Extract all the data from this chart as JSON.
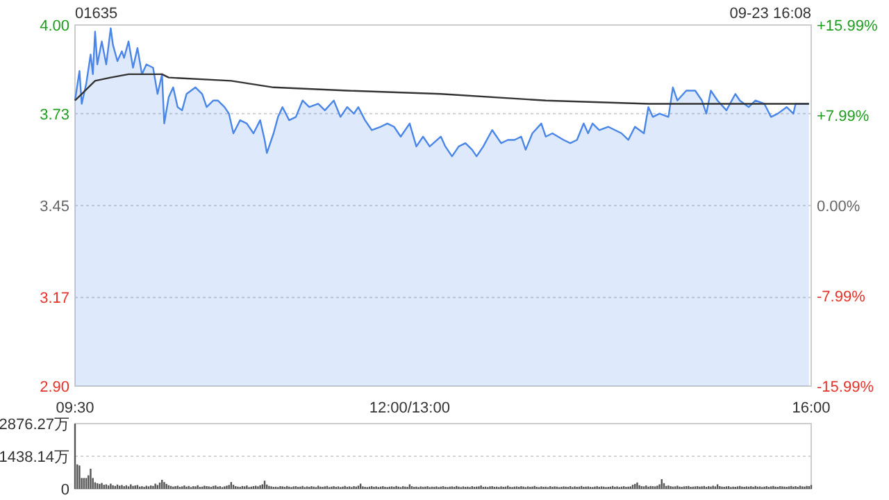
{
  "chart_data": [
    {
      "type": "area",
      "title": "01635",
      "annotations": [
        "09-23 16:08"
      ],
      "grid": "y",
      "categories": [
        "09:30",
        null,
        null,
        null,
        null,
        null,
        null,
        null,
        null,
        null,
        null,
        null,
        null,
        null,
        null,
        null,
        null,
        null,
        null,
        null,
        null,
        null,
        null,
        null,
        null,
        null,
        null,
        null,
        null,
        null,
        null,
        null,
        null,
        null,
        null,
        null,
        null,
        null,
        null,
        null,
        null,
        null,
        null,
        null,
        null,
        null,
        null,
        null,
        null,
        null,
        null,
        null,
        null,
        null,
        null,
        null,
        null,
        null,
        null,
        null,
        null,
        null,
        null,
        null,
        null,
        null,
        null,
        null,
        null,
        null,
        null,
        null,
        null,
        null,
        null,
        null,
        null,
        null,
        null,
        null,
        null,
        null,
        null,
        null,
        null,
        null,
        null,
        null,
        null,
        null,
        null,
        null,
        null,
        null,
        null,
        null,
        null,
        null,
        null,
        null,
        null,
        null,
        null,
        null,
        null,
        null,
        null,
        null,
        null,
        null,
        null,
        null,
        null,
        null,
        null,
        null,
        null,
        null,
        null,
        null,
        null,
        null,
        null,
        null,
        null,
        null,
        null,
        null,
        null,
        null,
        null,
        null,
        null,
        null,
        null,
        null,
        null,
        null,
        null,
        null,
        null,
        null,
        null,
        null,
        null,
        null,
        null,
        null,
        null,
        null,
        "12:00/13:00",
        null,
        null,
        null,
        null,
        null,
        null,
        null,
        null,
        null,
        null,
        null,
        null,
        null,
        null,
        null,
        null,
        null,
        null,
        null,
        null,
        null,
        null,
        null,
        null,
        null,
        null,
        null,
        null,
        null,
        null,
        null,
        null,
        null,
        null,
        null,
        null,
        null,
        null,
        null,
        null,
        null,
        null,
        null,
        null,
        null,
        null,
        null,
        null,
        null,
        null,
        null,
        null,
        null,
        null,
        null,
        null,
        null,
        null,
        null,
        null,
        null,
        null,
        null,
        null,
        null,
        null,
        null,
        null,
        null,
        null,
        null,
        null,
        null,
        null,
        null,
        null,
        null,
        null,
        null,
        null,
        null,
        null,
        null,
        null,
        null,
        null,
        null,
        null,
        null,
        null,
        null,
        null,
        null,
        null,
        null,
        null,
        null,
        null,
        null,
        null,
        null,
        null,
        null,
        null,
        null,
        null,
        null,
        null,
        null,
        null,
        null,
        null,
        null,
        null,
        null,
        null,
        null,
        null,
        null,
        null,
        null,
        null,
        null,
        null,
        null,
        null,
        null,
        null,
        null,
        null,
        null,
        null,
        null,
        null,
        null,
        null,
        null,
        null,
        null,
        null,
        null,
        null,
        null,
        null,
        null,
        null,
        null,
        null,
        null,
        null,
        null,
        null,
        null,
        null,
        null,
        null,
        null,
        null,
        null,
        null,
        null,
        null,
        null,
        null,
        null,
        null,
        null,
        null,
        null,
        null,
        null,
        null,
        null,
        null,
        null,
        null,
        null,
        null,
        null,
        "16:00"
      ],
      "ylim": [
        2.9,
        4.0
      ],
      "yticks": [
        {
          "value": 2.9,
          "label": "2.90"
        },
        {
          "value": 3.17,
          "label": "3.17"
        },
        {
          "value": 3.45,
          "label": "3.45"
        },
        {
          "value": 3.73,
          "label": "3.73"
        },
        {
          "value": 4.0,
          "label": "4.00"
        }
      ],
      "y2lim": [
        -15.99,
        15.99
      ],
      "y2ticks": [
        {
          "value": -15.99,
          "label": "-15.99%"
        },
        {
          "value": -7.99,
          "label": "-7.99%"
        },
        {
          "value": 0,
          "label": "0.00%"
        },
        {
          "value": 7.99,
          "label": "+7.99%"
        },
        {
          "value": 15.99,
          "label": "+15.99%"
        }
      ],
      "series": [
        {
          "color": "#4a86e8",
          "values": [
            3.77,
            null,
            3.86,
            3.76,
            null,
            3.82,
            null,
            3.91,
            3.85,
            3.98,
            3.88,
            null,
            3.95,
            null,
            3.88,
            null,
            3.99,
            3.94,
            null,
            3.89,
            null,
            3.92,
            3.9,
            null,
            3.95,
            null,
            3.87,
            null,
            3.93,
            null,
            3.85,
            null,
            3.88,
            null,
            null,
            3.87,
            null,
            3.79,
            null,
            3.85,
            3.7,
            null,
            3.78,
            null,
            3.81,
            null,
            3.75,
            null,
            3.74,
            null,
            3.79,
            null,
            null,
            null,
            3.81,
            null,
            null,
            3.79,
            null,
            3.75,
            null,
            null,
            3.77,
            null,
            3.77,
            null,
            null,
            3.75,
            null,
            3.73,
            null,
            3.67,
            null,
            null,
            3.71,
            null,
            null,
            3.7,
            null,
            null,
            3.67,
            null,
            null,
            3.71,
            null,
            3.65,
            3.61,
            null,
            null,
            3.67,
            null,
            3.72,
            null,
            3.75,
            null,
            null,
            3.71,
            null,
            null,
            3.72,
            null,
            null,
            3.77,
            null,
            null,
            3.75,
            null,
            null,
            null,
            3.76,
            null,
            null,
            3.74,
            null,
            null,
            null,
            3.77,
            null,
            null,
            3.72,
            null,
            null,
            3.75,
            null,
            null,
            3.73,
            null,
            3.75,
            null,
            null,
            3.71,
            null,
            null,
            3.68,
            null,
            null,
            null,
            3.69,
            null,
            null,
            3.7,
            null,
            null,
            3.69,
            null,
            null,
            3.66,
            null,
            null,
            null,
            3.7,
            null,
            null,
            3.63,
            null,
            null,
            3.66,
            null,
            null,
            3.63,
            null,
            null,
            null,
            null,
            3.66,
            null,
            3.63,
            null,
            null,
            3.6,
            null,
            null,
            3.63,
            null,
            null,
            3.64,
            null,
            null,
            3.62,
            null,
            3.6,
            null,
            null,
            3.63,
            null,
            null,
            null,
            3.68,
            null,
            null,
            null,
            3.64,
            null,
            null,
            3.65,
            null,
            null,
            3.65,
            null,
            null,
            3.66,
            null,
            3.62,
            null,
            null,
            3.67,
            null,
            null,
            null,
            3.7,
            null,
            3.66,
            null,
            null,
            3.67,
            null,
            null,
            null,
            null,
            3.65,
            null,
            null,
            3.64,
            null,
            null,
            3.65,
            null,
            null,
            3.7,
            null,
            3.67,
            null,
            3.7,
            null,
            null,
            3.68,
            null,
            null,
            null,
            3.69,
            null,
            null,
            null,
            null,
            null,
            3.67,
            null,
            null,
            3.65,
            null,
            null,
            3.69,
            null,
            null,
            null,
            3.67,
            null,
            3.75,
            null,
            3.72,
            null,
            null,
            3.73,
            null,
            null,
            null,
            3.72,
            null,
            3.81,
            null,
            3.77,
            null,
            null,
            null,
            3.8,
            null,
            null,
            null,
            3.8,
            null,
            null,
            3.77,
            null,
            3.73,
            null,
            3.8,
            null,
            null,
            3.77,
            null,
            null,
            null,
            3.74,
            null,
            null,
            null,
            3.79,
            null,
            3.77,
            null,
            null,
            null,
            3.75,
            null,
            null,
            3.77,
            null,
            null,
            null,
            3.76,
            null,
            null,
            3.72,
            null,
            null,
            3.73,
            null,
            null,
            null,
            3.75,
            null,
            null,
            3.73,
            3.76,
            null,
            null,
            3.76,
            null,
            null,
            3.76,
            null
          ]
        },
        {
          "type": "line",
          "color": "#333333",
          "values": [
            3.77,
            null,
            null,
            3.79,
            null,
            null,
            null,
            null,
            null,
            3.83,
            null,
            null,
            null,
            null,
            null,
            null,
            3.84,
            null,
            null,
            null,
            null,
            null,
            null,
            null,
            3.85,
            null,
            null,
            null,
            null,
            null,
            null,
            null,
            null,
            null,
            null,
            null,
            null,
            null,
            null,
            3.85,
            null,
            null,
            3.84,
            null,
            null,
            null,
            null,
            null,
            null,
            null,
            null,
            null,
            null,
            null,
            null,
            null,
            null,
            null,
            null,
            null,
            null,
            null,
            null,
            null,
            null,
            null,
            null,
            null,
            null,
            null,
            3.83,
            null,
            null,
            null,
            null,
            null,
            null,
            null,
            null,
            null,
            null,
            null,
            null,
            null,
            null,
            null,
            null,
            null,
            null,
            3.81,
            null,
            null,
            null,
            null,
            null,
            null,
            null,
            null,
            null,
            null,
            null,
            null,
            null,
            null,
            null,
            null,
            null,
            null,
            null,
            null,
            null,
            null,
            null,
            null,
            null,
            null,
            null,
            null,
            null,
            null,
            null,
            null,
            3.8,
            null,
            null,
            null,
            null,
            null,
            null,
            null,
            null,
            null,
            null,
            null,
            null,
            null,
            null,
            null,
            null,
            null,
            null,
            null,
            null,
            null,
            null,
            null,
            null,
            null,
            null,
            null,
            null,
            null,
            null,
            null,
            null,
            null,
            null,
            null,
            null,
            null,
            null,
            null,
            null,
            null,
            3.79,
            null,
            null,
            null,
            null,
            null,
            null,
            null,
            null,
            null,
            null,
            null,
            null,
            null,
            null,
            null,
            null,
            null,
            null,
            null,
            null,
            null,
            null,
            null,
            null,
            null,
            null,
            null,
            null,
            null,
            null,
            null,
            null,
            null,
            null,
            null,
            null,
            null,
            null,
            null,
            null,
            null,
            null,
            null,
            null,
            null,
            null,
            3.77,
            null,
            null,
            null,
            null,
            null,
            null,
            null,
            null,
            null,
            null,
            null,
            null,
            null,
            null,
            null,
            null,
            null,
            null,
            null,
            null,
            null,
            null,
            null,
            null,
            null,
            null,
            null,
            null,
            null,
            null,
            null,
            null,
            null,
            null,
            null,
            null,
            null,
            null,
            null,
            null,
            null,
            null,
            null,
            null,
            null,
            3.76,
            null,
            null,
            null,
            null,
            null,
            null,
            null,
            null,
            null,
            null,
            null,
            null,
            null,
            null,
            null,
            null,
            null,
            null,
            null,
            null,
            null,
            null,
            null,
            null,
            null,
            null,
            null,
            null,
            null,
            null,
            null,
            null,
            null,
            null,
            null,
            null,
            null,
            null,
            null,
            null,
            null,
            null,
            null,
            null,
            null,
            null,
            null,
            null,
            null,
            null,
            null,
            null,
            null,
            null,
            null,
            null,
            null,
            null,
            null,
            null,
            null,
            null,
            null,
            null,
            null,
            null,
            null,
            null,
            null,
            null,
            null,
            3.76,
            null
          ]
        }
      ]
    },
    {
      "type": "bar",
      "color": "#555555",
      "grid": "y",
      "categories": [
        null,
        null,
        null,
        null,
        null,
        null,
        null,
        null,
        null,
        null,
        null,
        null,
        null,
        null,
        null,
        null,
        null,
        null,
        null,
        null,
        null,
        null,
        null,
        null,
        null,
        null,
        null,
        null,
        null,
        null,
        null,
        null,
        null,
        null,
        null,
        null,
        null,
        null,
        null,
        null,
        null,
        null,
        null,
        null,
        null,
        null,
        null,
        null,
        null,
        null,
        null,
        null,
        null,
        null,
        null,
        null,
        null,
        null,
        null,
        null,
        null,
        null,
        null,
        null,
        null,
        null,
        null,
        null,
        null,
        null,
        null,
        null,
        null,
        null,
        null,
        null,
        null,
        null,
        null,
        null,
        null,
        null,
        null,
        null,
        null,
        null,
        null,
        null,
        null,
        null,
        null,
        null,
        null,
        null,
        null,
        null,
        null,
        null,
        null,
        null,
        null,
        null,
        null,
        null,
        null,
        null,
        null,
        null,
        null,
        null,
        null,
        null,
        null,
        null,
        null,
        null,
        null,
        null,
        null,
        null,
        null,
        null,
        null,
        null,
        null,
        null,
        null,
        null,
        null,
        null,
        null,
        null,
        null,
        null,
        null,
        null,
        null,
        null,
        null,
        null,
        null,
        null,
        null,
        null,
        null,
        null,
        null,
        null,
        null,
        null,
        null,
        null,
        null,
        null,
        null,
        null,
        null,
        null,
        null,
        null,
        null,
        null,
        null,
        null,
        null,
        null,
        null,
        null,
        null,
        null,
        null,
        null,
        null,
        null,
        null,
        null,
        null,
        null,
        null,
        null,
        null,
        null,
        null,
        null,
        null,
        null,
        null,
        null,
        null,
        null,
        null,
        null,
        null,
        null,
        null,
        null,
        null,
        null,
        null,
        null,
        null,
        null,
        null,
        null,
        null,
        null,
        null,
        null,
        null,
        null,
        null,
        null,
        null,
        null,
        null,
        null,
        null,
        null,
        null,
        null,
        null,
        null,
        null,
        null,
        null,
        null,
        null,
        null,
        null,
        null,
        null,
        null,
        null,
        null,
        null,
        null,
        null,
        null,
        null,
        null,
        null,
        null,
        null,
        null,
        null,
        null,
        null,
        null,
        null,
        null,
        null,
        null,
        null,
        null,
        null,
        null,
        null,
        null,
        null,
        null,
        null,
        null,
        null,
        null,
        null,
        null,
        null,
        null,
        null,
        null,
        null,
        null,
        null,
        null,
        null,
        null,
        null,
        null,
        null,
        null,
        null,
        null,
        null,
        null,
        null,
        null,
        null,
        null,
        null,
        null,
        null,
        null,
        null,
        null,
        null,
        null,
        null,
        null,
        null,
        null,
        null,
        null,
        null,
        null,
        null,
        null,
        null,
        null,
        null,
        null,
        null,
        null,
        null,
        null,
        null,
        null,
        null,
        null,
        null,
        null,
        null,
        null,
        null,
        null,
        null,
        null,
        null,
        null,
        null,
        null,
        null
      ],
      "ylim": [
        0,
        2876.27
      ],
      "yticks": [
        0,
        {
          "value": 1438.14,
          "label": "1438.14万"
        },
        {
          "value": 2876.27,
          "label": "2876.27万"
        }
      ],
      "values": [
        2870,
        1080,
        1030,
        480,
        480,
        480,
        600,
        890,
        480,
        290,
        250,
        220,
        260,
        180,
        200,
        150,
        230,
        160,
        130,
        190,
        140,
        170,
        120,
        160,
        110,
        200,
        130,
        150,
        170,
        100,
        120,
        90,
        140,
        110,
        150,
        130,
        230,
        170,
        280,
        400,
        300,
        220,
        160,
        130,
        100,
        120,
        140,
        90,
        110,
        150,
        100,
        130,
        80,
        120,
        110,
        160,
        90,
        100,
        140,
        120,
        110,
        90,
        130,
        150,
        100,
        120,
        80,
        110,
        140,
        170,
        300,
        180,
        120,
        100,
        90,
        130,
        110,
        150,
        80,
        100,
        120,
        140,
        110,
        160,
        200,
        360,
        190,
        130,
        110,
        90,
        100,
        80,
        120,
        110,
        90,
        130,
        100,
        80,
        110,
        120,
        90,
        100,
        130,
        80,
        110,
        90,
        120,
        100,
        80,
        140,
        100,
        90,
        110,
        130,
        80,
        100,
        120,
        90,
        110,
        80,
        100,
        130,
        90,
        110,
        80,
        120,
        100,
        140,
        230,
        110,
        90,
        80,
        100,
        120,
        90,
        110,
        80,
        100,
        120,
        90,
        80,
        100,
        110,
        90,
        130,
        100,
        80,
        120,
        100,
        90,
        200,
        120,
        90,
        100,
        80,
        110,
        90,
        100,
        120,
        80,
        100,
        90,
        110,
        80,
        100,
        120,
        90,
        80,
        100,
        110,
        90,
        130,
        100,
        80,
        110,
        90,
        100,
        80,
        120,
        90,
        100,
        110,
        150,
        90,
        100,
        80,
        110,
        120,
        90,
        100,
        80,
        110,
        90,
        100,
        140,
        90,
        80,
        100,
        110,
        90,
        120,
        100,
        80,
        110,
        90,
        100,
        130,
        90,
        80,
        110,
        90,
        100,
        80,
        120,
        90,
        110,
        100,
        80,
        90,
        110,
        100,
        90,
        120,
        80,
        110,
        90,
        100,
        130,
        90,
        100,
        110,
        90,
        80,
        100,
        120,
        90,
        110,
        100,
        80,
        90,
        100,
        130,
        90,
        110,
        80,
        100,
        120,
        90,
        100,
        110,
        180,
        220,
        280,
        160,
        120,
        110,
        150,
        100,
        130,
        120,
        110,
        140,
        200,
        430,
        250,
        130,
        150,
        120,
        100,
        110,
        140,
        100,
        90,
        110,
        120,
        130,
        90,
        100,
        110,
        120,
        100,
        110,
        130,
        90,
        120,
        100,
        140,
        110,
        200,
        120,
        100,
        90,
        110,
        120,
        80,
        100,
        90,
        110,
        130,
        100,
        90,
        110,
        100,
        120,
        90,
        130,
        100,
        110,
        80,
        100,
        120,
        90,
        110,
        130,
        100,
        90,
        120,
        110,
        100,
        90,
        110,
        130,
        100,
        120,
        90,
        140,
        110,
        100,
        130,
        120,
        170
      ]
    }
  ]
}
